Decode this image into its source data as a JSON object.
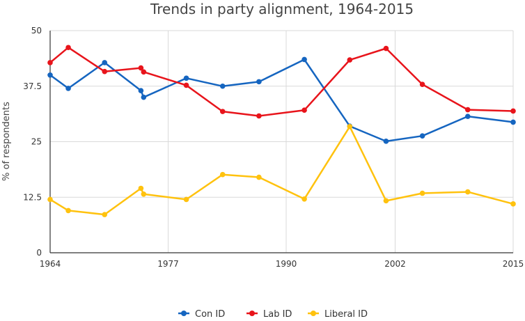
{
  "chart_data": {
    "type": "line",
    "title": "Trends in party alignment, 1964-2015",
    "xlabel": "",
    "ylabel": "% of respondents",
    "xlim": [
      1964,
      2015
    ],
    "ylim": [
      0,
      50
    ],
    "x_ticks": [
      1964,
      1977,
      1990,
      2002,
      2015
    ],
    "y_ticks": [
      0,
      12.5,
      25,
      37.5,
      50
    ],
    "x_tick_labels": [
      "1964",
      "1977",
      "1990",
      "2002",
      "2015"
    ],
    "y_tick_labels": [
      "0",
      "12.5",
      "25",
      "37.5",
      "50"
    ],
    "grid": true,
    "legend_position": "bottom",
    "series": [
      {
        "name": "Con ID",
        "color": "#1565C0",
        "points": [
          [
            1964,
            40.0
          ],
          [
            1966,
            37.0
          ],
          [
            1970,
            42.8
          ],
          [
            1974,
            36.5
          ],
          [
            1974.3,
            35.0
          ],
          [
            1979,
            39.3
          ],
          [
            1983,
            37.5
          ],
          [
            1987,
            38.5
          ],
          [
            1992,
            43.5
          ],
          [
            1997,
            28.5
          ],
          [
            2001,
            25.1
          ],
          [
            2005,
            26.3
          ],
          [
            2010,
            30.7
          ],
          [
            2015,
            29.4
          ]
        ]
      },
      {
        "name": "Lab ID",
        "color": "#E8141B",
        "points": [
          [
            1964,
            42.8
          ],
          [
            1966,
            46.2
          ],
          [
            1970,
            40.8
          ],
          [
            1974,
            41.6
          ],
          [
            1974.3,
            40.7
          ],
          [
            1979,
            37.7
          ],
          [
            1983,
            31.8
          ],
          [
            1987,
            30.8
          ],
          [
            1992,
            32.1
          ],
          [
            1997,
            43.4
          ],
          [
            2001,
            46.0
          ],
          [
            2005,
            37.9
          ],
          [
            2010,
            32.2
          ],
          [
            2015,
            31.9
          ]
        ]
      },
      {
        "name": "Liberal ID",
        "color": "#FFC20E",
        "points": [
          [
            1964,
            12.0
          ],
          [
            1966,
            9.5
          ],
          [
            1970,
            8.6
          ],
          [
            1974,
            14.5
          ],
          [
            1974.3,
            13.2
          ],
          [
            1979,
            12.0
          ],
          [
            1983,
            17.6
          ],
          [
            1987,
            17.0
          ],
          [
            1992,
            12.1
          ],
          [
            1997,
            28.4
          ],
          [
            2001,
            11.7
          ],
          [
            2005,
            13.4
          ],
          [
            2010,
            13.7
          ],
          [
            2015,
            11.0
          ]
        ]
      }
    ]
  }
}
